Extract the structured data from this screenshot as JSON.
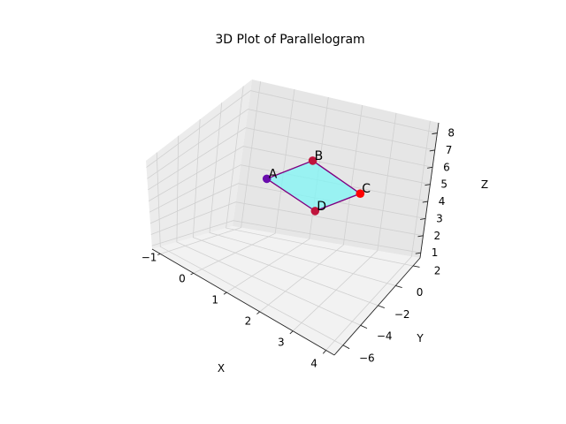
{
  "chart_data": {
    "type": "scatter",
    "projection": "3d",
    "title": "3D Plot of Parallelogram",
    "xlabel": "X",
    "ylabel": "Y",
    "zlabel": "Z",
    "xlim": [
      -1.25,
      4.25
    ],
    "ylim": [
      -7.0,
      2.8
    ],
    "zlim": [
      0.7,
      8.6
    ],
    "xticks": [
      -1,
      0,
      1,
      2,
      3,
      4
    ],
    "yticks": [
      -6,
      -4,
      -2,
      0,
      2
    ],
    "zticks": [
      1,
      2,
      3,
      4,
      5,
      6,
      7,
      8
    ],
    "grid": true,
    "points": [
      {
        "label": "A",
        "x": 0.0,
        "y": 1.0,
        "z": 4.3,
        "color": "#6a0dad"
      },
      {
        "label": "B",
        "x": 1.0,
        "y": 2.0,
        "z": 5.4,
        "color": "#c0143c"
      },
      {
        "label": "C",
        "x": 3.0,
        "y": 0.0,
        "z": 5.4,
        "color": "#ff0000"
      },
      {
        "label": "D",
        "x": 2.0,
        "y": -1.0,
        "z": 4.3,
        "color": "#c0143c"
      }
    ],
    "polygon": {
      "order": [
        "A",
        "B",
        "C",
        "D"
      ],
      "fill": "#7ff5f5",
      "stroke": "#800080"
    }
  }
}
